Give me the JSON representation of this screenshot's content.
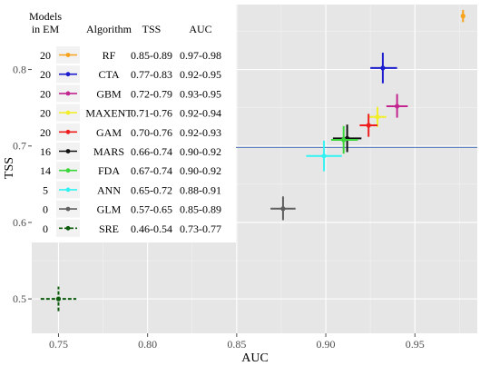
{
  "chart_data": {
    "type": "scatter",
    "xlabel": "AUC",
    "ylabel": "TSS",
    "xlim": [
      0.735,
      0.985
    ],
    "ylim": [
      0.455,
      0.885
    ],
    "x_ticks": [
      "0.75",
      "0.80",
      "0.85",
      "0.90",
      "0.95"
    ],
    "x_tick_values": [
      0.75,
      0.8,
      0.85,
      0.9,
      0.95
    ],
    "y_ticks": [
      "0.5",
      "0.6",
      "0.7",
      "0.8"
    ],
    "y_tick_values": [
      0.5,
      0.6,
      0.7,
      0.8
    ],
    "grid": true,
    "background": "#e6e6e6",
    "reference_line": {
      "y": 0.698,
      "color": "#4a6fb8"
    },
    "legend": {
      "placement": "top-left",
      "headers": {
        "models": "Models",
        "models2": "in EM",
        "algorithm": "Algorithm",
        "tss": "TSS",
        "auc": "AUC"
      }
    },
    "series": [
      {
        "name": "RF",
        "models_in_em": "20",
        "tss_range": "0.85-0.89",
        "auc_range": "0.97-0.98",
        "color": "#f7a21b",
        "auc": 0.977,
        "tss": 0.87,
        "auc_lo": 0.976,
        "auc_hi": 0.978,
        "tss_lo": 0.862,
        "tss_hi": 0.878,
        "dashed": false
      },
      {
        "name": "CTA",
        "models_in_em": "20",
        "tss_range": "0.77-0.83",
        "auc_range": "0.92-0.95",
        "color": "#1c1ccf",
        "auc": 0.932,
        "tss": 0.802,
        "auc_lo": 0.925,
        "auc_hi": 0.94,
        "tss_lo": 0.782,
        "tss_hi": 0.822,
        "dashed": false
      },
      {
        "name": "GBM",
        "models_in_em": "20",
        "tss_range": "0.72-0.79",
        "auc_range": "0.93-0.95",
        "color": "#c2258f",
        "auc": 0.94,
        "tss": 0.752,
        "auc_lo": 0.934,
        "auc_hi": 0.946,
        "tss_lo": 0.737,
        "tss_hi": 0.768,
        "dashed": false
      },
      {
        "name": "MAXENT",
        "models_in_em": "20",
        "tss_range": "0.71-0.76",
        "auc_range": "0.92-0.94",
        "color": "#f2ee2a",
        "auc": 0.929,
        "tss": 0.738,
        "auc_lo": 0.924,
        "auc_hi": 0.934,
        "tss_lo": 0.725,
        "tss_hi": 0.751,
        "dashed": false
      },
      {
        "name": "GAM",
        "models_in_em": "20",
        "tss_range": "0.70-0.76",
        "auc_range": "0.92-0.93",
        "color": "#ee1c1c",
        "auc": 0.924,
        "tss": 0.727,
        "auc_lo": 0.919,
        "auc_hi": 0.929,
        "tss_lo": 0.712,
        "tss_hi": 0.742,
        "dashed": false
      },
      {
        "name": "MARS",
        "models_in_em": "16",
        "tss_range": "0.66-0.74",
        "auc_range": "0.90-0.92",
        "color": "#111111",
        "auc": 0.912,
        "tss": 0.71,
        "auc_lo": 0.904,
        "auc_hi": 0.92,
        "tss_lo": 0.692,
        "tss_hi": 0.728,
        "dashed": false
      },
      {
        "name": "FDA",
        "models_in_em": "14",
        "tss_range": "0.67-0.74",
        "auc_range": "0.90-0.92",
        "color": "#3ad63a",
        "auc": 0.91,
        "tss": 0.708,
        "auc_lo": 0.903,
        "auc_hi": 0.918,
        "tss_lo": 0.69,
        "tss_hi": 0.726,
        "dashed": false
      },
      {
        "name": "ANN",
        "models_in_em": "5",
        "tss_range": "0.65-0.72",
        "auc_range": "0.88-0.91",
        "color": "#33f2f2",
        "auc": 0.899,
        "tss": 0.687,
        "auc_lo": 0.889,
        "auc_hi": 0.909,
        "tss_lo": 0.667,
        "tss_hi": 0.707,
        "dashed": false
      },
      {
        "name": "GLM",
        "models_in_em": "0",
        "tss_range": "0.57-0.65",
        "auc_range": "0.85-0.89",
        "color": "#5f5f5f",
        "auc": 0.876,
        "tss": 0.618,
        "auc_lo": 0.869,
        "auc_hi": 0.883,
        "tss_lo": 0.603,
        "tss_hi": 0.634,
        "dashed": false
      },
      {
        "name": "SRE",
        "models_in_em": "0",
        "tss_range": "0.46-0.54",
        "auc_range": "0.73-0.77",
        "color": "#0c5a0c",
        "auc": 0.75,
        "tss": 0.5,
        "auc_lo": 0.74,
        "auc_hi": 0.76,
        "tss_lo": 0.484,
        "tss_hi": 0.516,
        "dashed": true
      }
    ]
  }
}
